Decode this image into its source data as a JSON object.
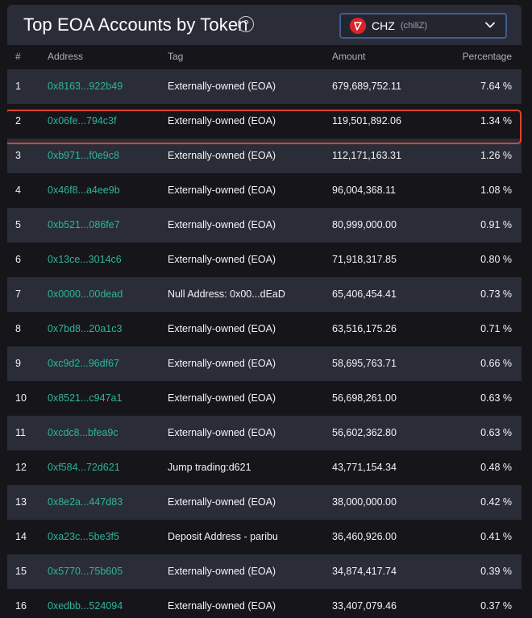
{
  "header": {
    "title": "Top EOA Accounts by Token",
    "help_icon": "question-circle-icon",
    "token_select": {
      "symbol": "CHZ",
      "name": "(chiliZ)",
      "logo_icon": "chiliz-logo-icon",
      "chevron_icon": "chevron-down-icon"
    }
  },
  "table": {
    "columns": {
      "num": "#",
      "address": "Address",
      "tag": "Tag",
      "amount": "Amount",
      "percentage": "Percentage"
    },
    "highlight_color": "#e0442a",
    "rows": [
      {
        "num": "1",
        "address": "0x8163...922b49",
        "tag": "Externally-owned (EOA)",
        "amount": "679,689,752.11",
        "pct": "7.64 %"
      },
      {
        "num": "2",
        "address": "0x06fe...794c3f",
        "tag": "Externally-owned (EOA)",
        "amount": "119,501,892.06",
        "pct": "1.34 %"
      },
      {
        "num": "3",
        "address": "0xb971...f0e9c8",
        "tag": "Externally-owned (EOA)",
        "amount": "112,171,163.31",
        "pct": "1.26 %"
      },
      {
        "num": "4",
        "address": "0x46f8...a4ee9b",
        "tag": "Externally-owned (EOA)",
        "amount": "96,004,368.11",
        "pct": "1.08 %"
      },
      {
        "num": "5",
        "address": "0xb521...086fe7",
        "tag": "Externally-owned (EOA)",
        "amount": "80,999,000.00",
        "pct": "0.91 %"
      },
      {
        "num": "6",
        "address": "0x13ce...3014c6",
        "tag": "Externally-owned (EOA)",
        "amount": "71,918,317.85",
        "pct": "0.80 %"
      },
      {
        "num": "7",
        "address": "0x0000...00dead",
        "tag": "Null Address: 0x00...dEaD",
        "amount": "65,406,454.41",
        "pct": "0.73 %"
      },
      {
        "num": "8",
        "address": "0x7bd8...20a1c3",
        "tag": "Externally-owned (EOA)",
        "amount": "63,516,175.26",
        "pct": "0.71 %"
      },
      {
        "num": "9",
        "address": "0xc9d2...96df67",
        "tag": "Externally-owned (EOA)",
        "amount": "58,695,763.71",
        "pct": "0.66 %"
      },
      {
        "num": "10",
        "address": "0x8521...c947a1",
        "tag": "Externally-owned (EOA)",
        "amount": "56,698,261.00",
        "pct": "0.63 %"
      },
      {
        "num": "11",
        "address": "0xcdc8...bfea9c",
        "tag": "Externally-owned (EOA)",
        "amount": "56,602,362.80",
        "pct": "0.63 %"
      },
      {
        "num": "12",
        "address": "0xf584...72d621",
        "tag": "Jump trading:d621",
        "amount": "43,771,154.34",
        "pct": "0.48 %"
      },
      {
        "num": "13",
        "address": "0x8e2a...447d83",
        "tag": "Externally-owned (EOA)",
        "amount": "38,000,000.00",
        "pct": "0.42 %"
      },
      {
        "num": "14",
        "address": "0xa23c...5be3f5",
        "tag": "Deposit Address - paribu",
        "amount": "36,460,926.00",
        "pct": "0.41 %"
      },
      {
        "num": "15",
        "address": "0x5770...75b605",
        "tag": "Externally-owned (EOA)",
        "amount": "34,874,417.74",
        "pct": "0.39 %"
      },
      {
        "num": "16",
        "address": "0xedbb...524094",
        "tag": "Externally-owned (EOA)",
        "amount": "33,407,079.46",
        "pct": "0.37 %"
      }
    ]
  }
}
